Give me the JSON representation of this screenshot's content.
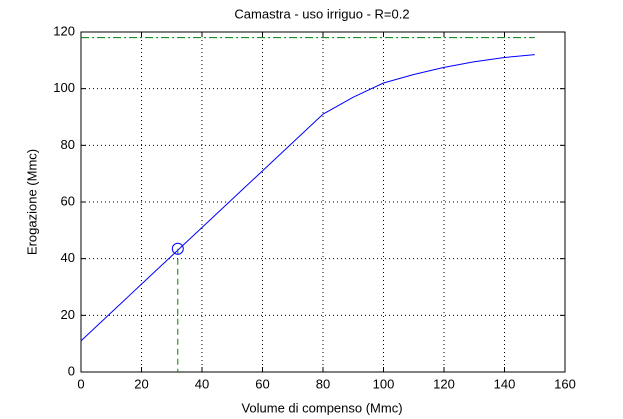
{
  "chart_data": {
    "type": "line",
    "title": "Camastra  -  uso irriguo  -   R=0.2",
    "xlabel": "Volume di compenso (Mmc)",
    "ylabel": "Erogazione (Mmc)",
    "x": [
      0,
      20,
      40,
      60,
      80,
      90,
      100,
      110,
      120,
      130,
      140,
      150
    ],
    "series": [
      {
        "color": "#0000ff",
        "values": [
          11,
          31,
          51,
          71,
          91,
          97,
          102,
          105,
          107.5,
          109.5,
          111,
          112
        ]
      }
    ],
    "hline": {
      "value": 118,
      "x": [
        0,
        150
      ],
      "color": "#008000"
    },
    "marker": {
      "x": 32,
      "y": 43.5,
      "color": "#0000ff",
      "line_color": "#008000"
    },
    "xlim": [
      0,
      160
    ],
    "xticks": [
      0,
      20,
      40,
      60,
      80,
      100,
      120,
      140,
      160
    ],
    "ylim": [
      0,
      120
    ],
    "yticks": [
      0,
      20,
      40,
      60,
      80,
      100,
      120
    ],
    "grid": true
  }
}
